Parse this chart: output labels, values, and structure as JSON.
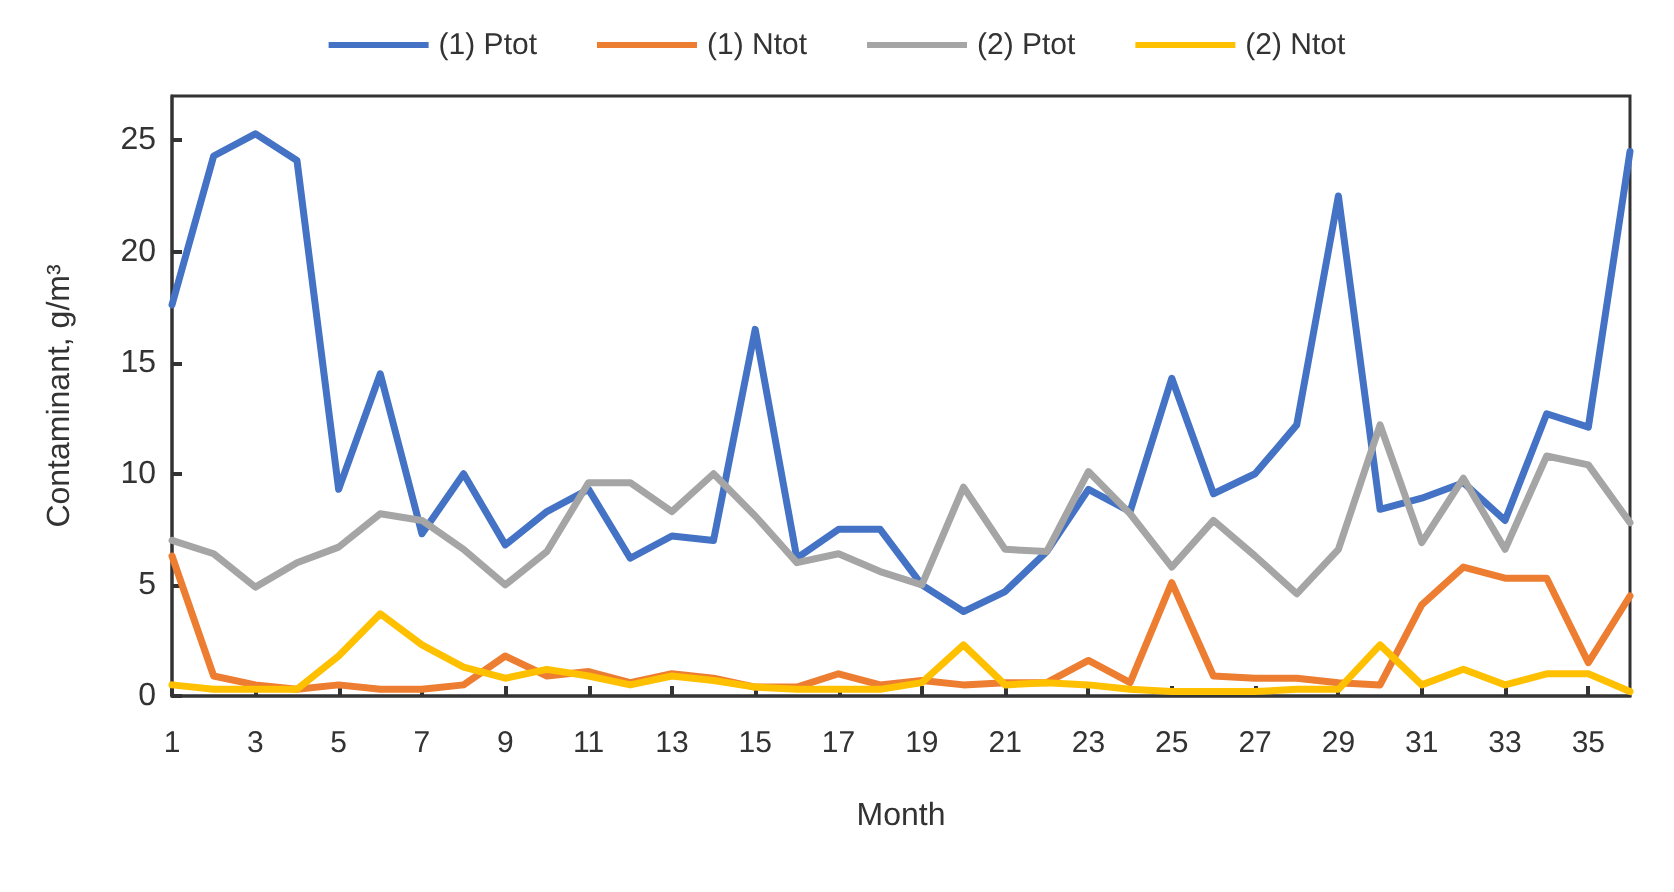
{
  "chart_data": {
    "type": "line",
    "xlabel": "Month",
    "ylabel": "Contaminant, g/m³",
    "x": [
      1,
      2,
      3,
      4,
      5,
      6,
      7,
      8,
      9,
      10,
      11,
      12,
      13,
      14,
      15,
      16,
      17,
      18,
      19,
      20,
      21,
      22,
      23,
      24,
      25,
      26,
      27,
      28,
      29,
      30,
      31,
      32,
      33,
      34,
      35,
      36
    ],
    "xlim": [
      1,
      36
    ],
    "xticks": [
      1,
      3,
      5,
      7,
      9,
      11,
      13,
      15,
      17,
      19,
      21,
      23,
      25,
      27,
      29,
      31,
      33,
      35
    ],
    "ylim": [
      0,
      27
    ],
    "yticks": [
      0,
      5,
      10,
      15,
      20,
      25
    ],
    "grid": false,
    "legend": "top",
    "marker": "none",
    "line_style": "solid",
    "series": [
      {
        "name": "(1) Ptot",
        "color": "#4472c4",
        "values": [
          17.6,
          24.3,
          25.3,
          24.1,
          9.3,
          14.5,
          7.3,
          10,
          6.8,
          8.3,
          9.3,
          6.2,
          7.2,
          7,
          16.5,
          6.2,
          7.5,
          7.5,
          5,
          3.8,
          4.7,
          6.5,
          9.3,
          8.3,
          14.3,
          9.1,
          10,
          12.2,
          22.5,
          8.4,
          8.9,
          9.6,
          7.9,
          12.7,
          12.1,
          24.5
        ]
      },
      {
        "name": "(1) Ntot",
        "color": "#ed7d31",
        "values": [
          6.3,
          0.9,
          0.5,
          0.3,
          0.5,
          0.3,
          0.3,
          0.5,
          1.8,
          0.9,
          1.1,
          0.6,
          1,
          0.8,
          0.4,
          0.4,
          1,
          0.5,
          0.7,
          0.5,
          0.6,
          0.6,
          1.6,
          0.6,
          5.1,
          0.9,
          0.8,
          0.8,
          0.6,
          0.5,
          4.1,
          5.8,
          5.3,
          5.3,
          1.5,
          4.5
        ]
      },
      {
        "name": "(2) Ptot",
        "color": "#a5a5a5",
        "values": [
          7,
          6.4,
          4.9,
          6,
          6.7,
          8.2,
          7.9,
          6.6,
          5,
          6.5,
          9.6,
          9.6,
          8.3,
          10,
          8.1,
          6,
          6.4,
          5.6,
          5,
          9.4,
          6.6,
          6.5,
          10.1,
          8.2,
          5.8,
          7.9,
          6.3,
          4.6,
          6.6,
          12.2,
          6.9,
          9.8,
          6.6,
          10.8,
          10.4,
          7.8
        ]
      },
      {
        "name": "(2) Ntot",
        "color": "#ffc000",
        "values": [
          0.5,
          0.3,
          0.3,
          0.3,
          1.8,
          3.7,
          2.3,
          1.3,
          0.8,
          1.2,
          0.9,
          0.5,
          0.9,
          0.7,
          0.4,
          0.3,
          0.3,
          0.3,
          0.6,
          2.3,
          0.5,
          0.6,
          0.5,
          0.3,
          0.2,
          0.2,
          0.2,
          0.3,
          0.3,
          2.3,
          0.5,
          1.2,
          0.5,
          1,
          1,
          0.2
        ]
      }
    ]
  }
}
